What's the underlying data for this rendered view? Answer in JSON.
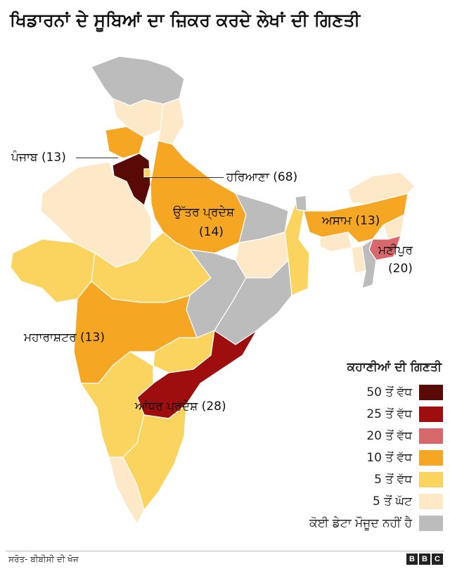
{
  "title": "ਖਿਡਾਰਨਾਂ ਦੇ ਸੂਬਿਆਂ ਦਾ ਜ਼ਿਕਰ ਕਰਦੇ ਲੇਖਾਂ ਦੀ ਗਿਣਤੀ",
  "labels": {
    "punjab": "ਪੰਜਾਬ (13)",
    "haryana": "ਹਰਿਆਣਾ (68)",
    "uttar_pradesh": "ਉੱਤਰ ਪ੍ਰਦੇਸ਼",
    "uttar_pradesh_count": "(14)",
    "assam": "ਅਸਾਮ (13)",
    "manipur": "ਮਣੀਪੁਰ",
    "manipur_count": "(20)",
    "maharashtra": "ਮਹਾਰਾਸ਼ਟਰ (13)",
    "andhra_pradesh": "ਆਂਧਰ ਪ੍ਰਦੇਸ਼ (28)"
  },
  "legend": {
    "title": "ਕਹਾਣੀਆਂ ਦੀ ਗਿਣਤੀ",
    "items": [
      {
        "label": "50 ਤੋਂ ਵੱਧ",
        "color": "#5a0a06"
      },
      {
        "label": "25 ਤੋਂ ਵੱਧ",
        "color": "#9e0e0e"
      },
      {
        "label": "20 ਤੋਂ ਵੱਧ",
        "color": "#d9686b"
      },
      {
        "label": "10 ਤੋਂ ਵੱਧ",
        "color": "#f5a623"
      },
      {
        "label": "5 ਤੋਂ ਵੱਧ",
        "color": "#fbd460"
      },
      {
        "label": "5 ਤੋਂ ਘੱਟ",
        "color": "#fde8c8"
      },
      {
        "label": "ਕੋਈ ਡੇਟਾ ਮੌਜੂਦ ਨਹੀਂ ਹੈ",
        "color": "#bcbcbc"
      }
    ]
  },
  "source": "ਸਰੋਤ- ਬੀਬੀਸੀ ਦੀ ਖੋਜ",
  "brand": [
    "B",
    "B",
    "C"
  ]
}
